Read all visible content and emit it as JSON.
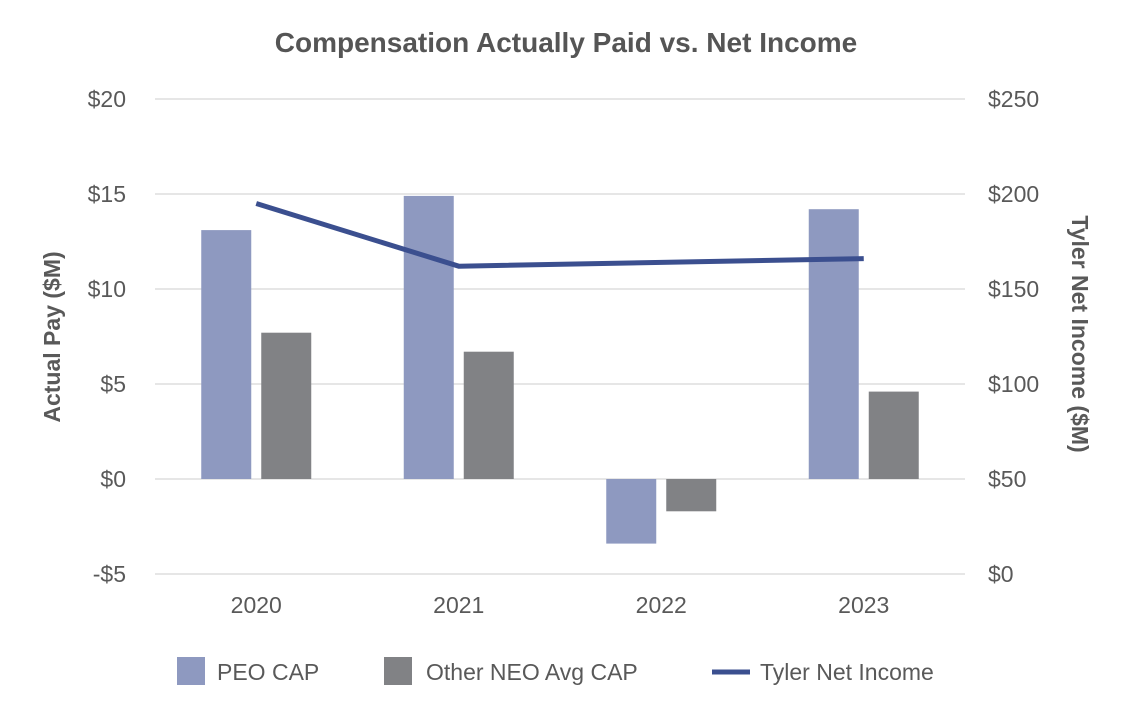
{
  "chart_data": {
    "type": "bar",
    "title": "Compensation Actually Paid vs. Net Income",
    "categories": [
      "2020",
      "2021",
      "2022",
      "2023"
    ],
    "ylabel": "Actual Pay ($M)",
    "y2label": "Tyler Net Income ($M)",
    "ylim": [
      -5,
      20
    ],
    "y2lim": [
      0,
      250
    ],
    "yticks": [
      20,
      15,
      10,
      5,
      0,
      -5
    ],
    "ytick_labels": [
      "$20",
      "$15",
      "$10",
      "$5",
      "$0",
      "-$5"
    ],
    "y2ticks": [
      250,
      200,
      150,
      100,
      50,
      0
    ],
    "y2tick_labels": [
      "$250",
      "$200",
      "$150",
      "$100",
      "$50",
      "$0"
    ],
    "grid": true,
    "legend_position": "bottom",
    "series": [
      {
        "name": "PEO CAP",
        "kind": "bar",
        "axis": "left",
        "color": "#8e99c0",
        "values": [
          13.1,
          14.9,
          -3.4,
          14.2
        ]
      },
      {
        "name": "Other NEO Avg CAP",
        "kind": "bar",
        "axis": "left",
        "color": "#818285",
        "values": [
          7.7,
          6.7,
          -1.7,
          4.6
        ]
      },
      {
        "name": "Tyler Net Income",
        "kind": "line",
        "axis": "right",
        "color": "#3b4f8f",
        "values": [
          195,
          162,
          null,
          166
        ]
      }
    ]
  }
}
